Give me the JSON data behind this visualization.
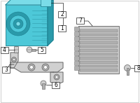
{
  "bg_color": "#ffffff",
  "border_color": "#c8c8c8",
  "teal_main": "#4dc8d8",
  "teal_dark": "#2a9aaa",
  "teal_light": "#7adce8",
  "teal_stroke": "#1a7a8a",
  "gray_light": "#d0d0d0",
  "gray_mid": "#b0b0b0",
  "gray_dark": "#808080",
  "gray_stroke": "#606060",
  "line_color": "#222222",
  "label_bg": "#ffffff",
  "fig_width": 2.0,
  "fig_height": 1.47,
  "dpi": 100
}
